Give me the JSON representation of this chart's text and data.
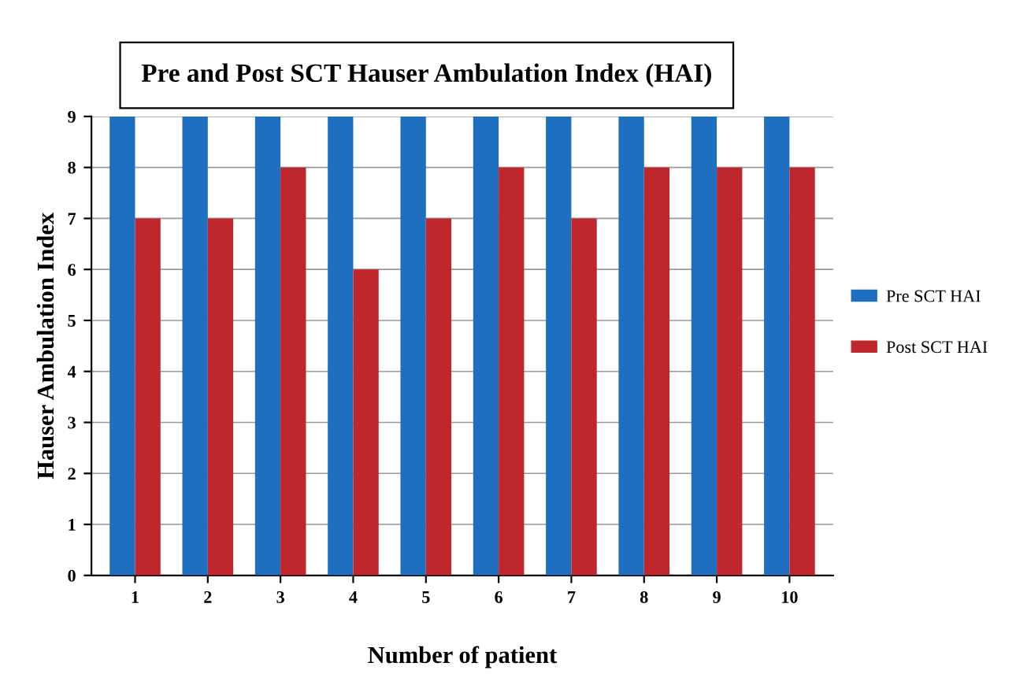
{
  "chart_data": {
    "type": "bar",
    "title": "Pre and Post SCT Hauser Ambulation Index (HAI)",
    "xlabel": "Number of patient",
    "ylabel": "Hauser Ambulation Index",
    "categories": [
      "1",
      "2",
      "3",
      "4",
      "5",
      "6",
      "7",
      "8",
      "9",
      "10"
    ],
    "series": [
      {
        "name": "Pre SCT HAI",
        "color": "#1f6fc0",
        "values": [
          9,
          9,
          9,
          9,
          9,
          9,
          9,
          9,
          9,
          9
        ]
      },
      {
        "name": "Post SCT HAI",
        "color": "#c0272d",
        "values": [
          7,
          7,
          8,
          6,
          7,
          8,
          7,
          8,
          8,
          8
        ]
      }
    ],
    "ylim": [
      0,
      9
    ],
    "yticks": [
      0,
      1,
      2,
      3,
      4,
      5,
      6,
      7,
      8,
      9
    ],
    "grid": "y",
    "legend": "right"
  }
}
